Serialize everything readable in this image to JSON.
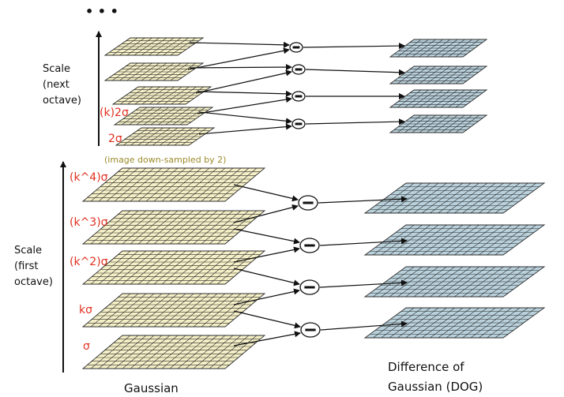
{
  "top_ellipsis": "• • •",
  "next_octave": {
    "axis_label_lines": [
      "Scale",
      "(next",
      "octave)"
    ],
    "level_labels": [
      "(k)2σ",
      "2σ"
    ]
  },
  "downsample_note": "(image down-sampled by 2)",
  "first_octave": {
    "axis_label_lines": [
      "Scale",
      "(first",
      "octave)"
    ],
    "level_labels": [
      "(k^4)σ",
      "(k^3)σ",
      "(k^2)σ",
      "kσ",
      "σ"
    ]
  },
  "captions": {
    "gaussian": "Gaussian",
    "dog_lines": [
      "Difference of",
      "Gaussian (DOG)"
    ]
  },
  "colors": {
    "gaussian_fill": "#f4efc6",
    "dog_fill": "#b9d1dc",
    "grid_line": "#2b2b2b",
    "label_red": "#e0301e",
    "note_olive": "#9a8a2a"
  },
  "icons": {
    "subtract_operator": "circled-minus-icon",
    "scale_axis": "up-arrow-icon"
  }
}
